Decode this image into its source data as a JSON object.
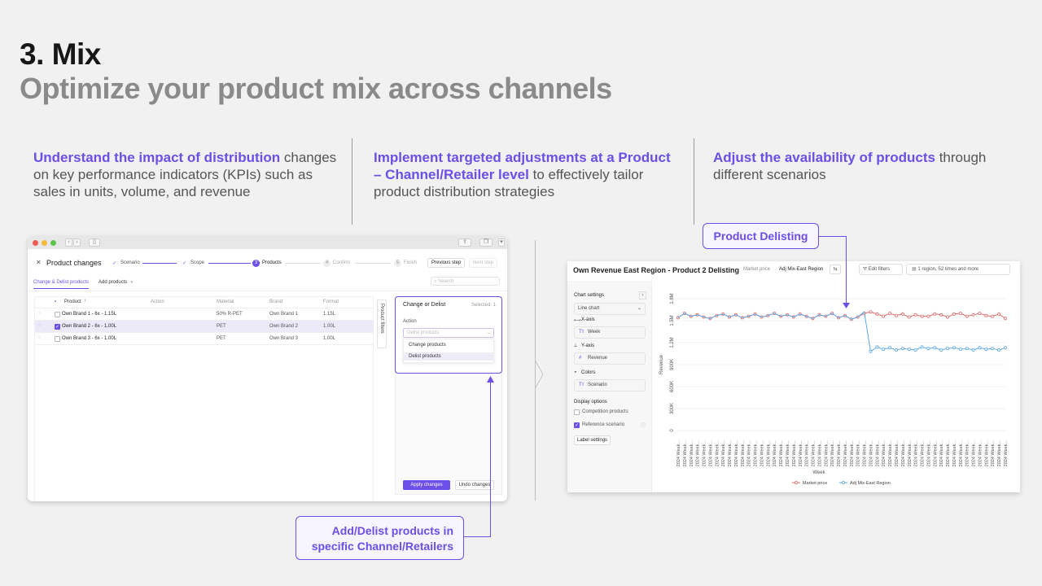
{
  "header": {
    "title": "3. Mix",
    "subtitle": "Optimize your product mix across channels"
  },
  "columns": [
    {
      "highlight": "Understand the impact of distribution",
      "text": " changes on key performance indicators (KPIs) such as sales in units, volume, and revenue"
    },
    {
      "highlight": "Implement targeted adjustments at a Product – Channel/Retailer level",
      "text": " to effectively tailor product distribution strategies"
    },
    {
      "highlight": "Adjust the availability of products",
      "text": " through different scenarios"
    }
  ],
  "callouts": {
    "delisting": "Product Delisting",
    "add_delist": "Add/Delist products in specific Channel/Retailers"
  },
  "app1": {
    "title": "Product changes",
    "steps": [
      "Scenario",
      "Scope",
      "Products",
      "Confirm",
      "Finish"
    ],
    "step3_num": "3",
    "step4_num": "4",
    "step5_num": "5",
    "previous_step": "Previous step",
    "next_step": "Next step",
    "tab_active": "Change & Delist products",
    "tab_add": "Add products",
    "search_placeholder": "Search",
    "columns": [
      "Product",
      "Action",
      "Material",
      "Brand",
      "Format"
    ],
    "rows": [
      {
        "product": "Own Brand 1 - 6x - 1.15L",
        "material": "50% R-PET",
        "brand": "Own Brand 1",
        "format": "1.15L"
      },
      {
        "product": "Own Brand 2 - 6x - 1.00L",
        "material": "PET",
        "brand": "Own Brand 2",
        "format": "1.00L"
      },
      {
        "product": "Own Brand 3 - 6x - 1.00L",
        "material": "PET",
        "brand": "Own Brand 3",
        "format": "1.00L"
      }
    ],
    "filters_label": "Product filters",
    "panel": {
      "title": "Change or Delist",
      "selected": "Selected: 1",
      "action_label": "Action",
      "select_placeholder": "Delist products",
      "options": [
        "Change products",
        "Delist products"
      ]
    },
    "apply": "Apply changes",
    "undo": "Undo changes"
  },
  "app2": {
    "title": "Own Revenue East Region - Product 2 Delisting",
    "tag1": "Market price",
    "tag2": "Adj Mix-East Region",
    "edit_filters": "Edit filters",
    "filter_summary": "1 region, 52 times and more",
    "settings": {
      "title": "Chart settings",
      "chart_type": "Line chart",
      "xaxis_label": "X-axis",
      "xaxis_value": "Week",
      "yaxis_label": "Y-axis",
      "yaxis_value": "Revenue",
      "colors_label": "Colors",
      "colors_value": "Scenario",
      "display_options": "Display options",
      "competition": "Competition products",
      "reference": "Reference scenario",
      "label_settings": "Label settings"
    },
    "legend": [
      "Market price",
      "Adj Mix-East Region"
    ],
    "colors": {
      "series1": "#e06b6b",
      "series2": "#5aa8e8",
      "accent": "#6b4fe6"
    }
  },
  "chart_data": {
    "type": "line",
    "xlabel": "Week",
    "ylabel": "Revenue",
    "yticks": [
      "0",
      "300K",
      "600K",
      "900K",
      "1.2M",
      "1.5M",
      "1.8M"
    ],
    "ylim": [
      0,
      1800000
    ],
    "x_tick_label": "2024 Week...",
    "series": [
      {
        "name": "Market price",
        "values": [
          1540000,
          1600000,
          1560000,
          1580000,
          1550000,
          1530000,
          1570000,
          1590000,
          1550000,
          1580000,
          1540000,
          1560000,
          1590000,
          1550000,
          1570000,
          1600000,
          1560000,
          1580000,
          1550000,
          1590000,
          1560000,
          1530000,
          1580000,
          1560000,
          1600000,
          1540000,
          1570000,
          1520000,
          1550000,
          1600000,
          1620000,
          1590000,
          1560000,
          1600000,
          1570000,
          1590000,
          1550000,
          1580000,
          1560000,
          1560000,
          1590000,
          1580000,
          1550000,
          1590000,
          1600000,
          1560000,
          1580000,
          1600000,
          1570000,
          1560000,
          1590000,
          1530000
        ]
      },
      {
        "name": "Adj Mix-East Region",
        "values": [
          1540000,
          1600000,
          1560000,
          1580000,
          1550000,
          1530000,
          1570000,
          1590000,
          1550000,
          1580000,
          1540000,
          1560000,
          1590000,
          1550000,
          1570000,
          1600000,
          1560000,
          1580000,
          1550000,
          1590000,
          1560000,
          1530000,
          1580000,
          1560000,
          1600000,
          1540000,
          1570000,
          1520000,
          1550000,
          1620000,
          1080000,
          1140000,
          1110000,
          1130000,
          1100000,
          1120000,
          1110000,
          1100000,
          1140000,
          1120000,
          1130000,
          1100000,
          1120000,
          1130000,
          1110000,
          1120000,
          1100000,
          1130000,
          1110000,
          1120000,
          1100000,
          1130000
        ]
      }
    ]
  }
}
